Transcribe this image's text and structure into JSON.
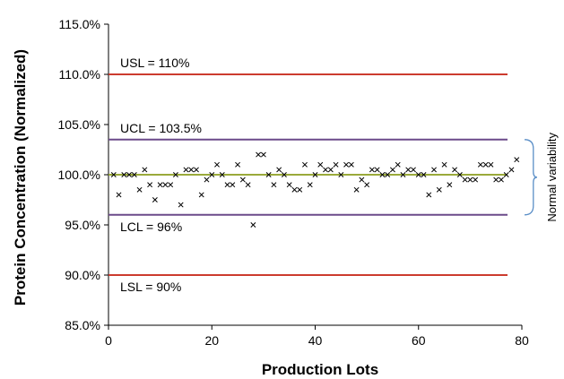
{
  "chart_data": {
    "type": "scatter",
    "xlabel": "Production Lots",
    "ylabel": "Protein Concentration (Normalized)",
    "xlim": [
      0,
      80
    ],
    "ylim": [
      85,
      115
    ],
    "x_ticks": [
      "0",
      "20",
      "40",
      "60",
      "80"
    ],
    "y_ticks": [
      "85.0%",
      "90.0%",
      "95.0%",
      "100.0%",
      "105.0%",
      "110.0%",
      "115.0%"
    ],
    "grid": false,
    "marker": "x",
    "reference_lines": [
      {
        "label": "USL = 110%",
        "value": 110,
        "color": "#cc3b2e"
      },
      {
        "label": "UCL = 103.5%",
        "value": 103.5,
        "color": "#6b4a8a"
      },
      {
        "label": "",
        "value": 100,
        "color": "#9aaa3a"
      },
      {
        "label": "LCL = 96%",
        "value": 96,
        "color": "#6b4a8a"
      },
      {
        "label": "LSL = 90%",
        "value": 90,
        "color": "#cc3b2e"
      }
    ],
    "annotation": "Normal variability",
    "annotation_color": "#5b8fc7",
    "points": [
      [
        1,
        100
      ],
      [
        2,
        98
      ],
      [
        3,
        100
      ],
      [
        4,
        100
      ],
      [
        5,
        100
      ],
      [
        6,
        98.5
      ],
      [
        7,
        100.5
      ],
      [
        8,
        99
      ],
      [
        9,
        97.5
      ],
      [
        10,
        99
      ],
      [
        11,
        99
      ],
      [
        12,
        99
      ],
      [
        13,
        100
      ],
      [
        14,
        97
      ],
      [
        15,
        100.5
      ],
      [
        16,
        100.5
      ],
      [
        17,
        100.5
      ],
      [
        18,
        98
      ],
      [
        19,
        99.5
      ],
      [
        20,
        100
      ],
      [
        21,
        101
      ],
      [
        22,
        100
      ],
      [
        23,
        99
      ],
      [
        24,
        99
      ],
      [
        25,
        101
      ],
      [
        26,
        99.5
      ],
      [
        27,
        99
      ],
      [
        28,
        95
      ],
      [
        29,
        102
      ],
      [
        30,
        102
      ],
      [
        31,
        100
      ],
      [
        32,
        99
      ],
      [
        33,
        100.5
      ],
      [
        34,
        100
      ],
      [
        35,
        99
      ],
      [
        36,
        98.5
      ],
      [
        37,
        98.5
      ],
      [
        38,
        101
      ],
      [
        39,
        99
      ],
      [
        40,
        100
      ],
      [
        41,
        101
      ],
      [
        42,
        100.5
      ],
      [
        43,
        100.5
      ],
      [
        44,
        101
      ],
      [
        45,
        100
      ],
      [
        46,
        101
      ],
      [
        47,
        101
      ],
      [
        48,
        98.5
      ],
      [
        49,
        99.5
      ],
      [
        50,
        99
      ],
      [
        51,
        100.5
      ],
      [
        52,
        100.5
      ],
      [
        53,
        100
      ],
      [
        54,
        100
      ],
      [
        55,
        100.5
      ],
      [
        56,
        101
      ],
      [
        57,
        100
      ],
      [
        58,
        100.5
      ],
      [
        59,
        100.5
      ],
      [
        60,
        100
      ],
      [
        61,
        100
      ],
      [
        62,
        98
      ],
      [
        63,
        100.5
      ],
      [
        64,
        98.5
      ],
      [
        65,
        101
      ],
      [
        66,
        99
      ],
      [
        67,
        100.5
      ],
      [
        68,
        100
      ],
      [
        69,
        99.5
      ],
      [
        70,
        99.5
      ],
      [
        71,
        99.5
      ],
      [
        72,
        101
      ],
      [
        73,
        101
      ],
      [
        74,
        101
      ],
      [
        75,
        99.5
      ],
      [
        76,
        99.5
      ],
      [
        77,
        100
      ],
      [
        78,
        100.5
      ],
      [
        79,
        101.5
      ]
    ]
  }
}
